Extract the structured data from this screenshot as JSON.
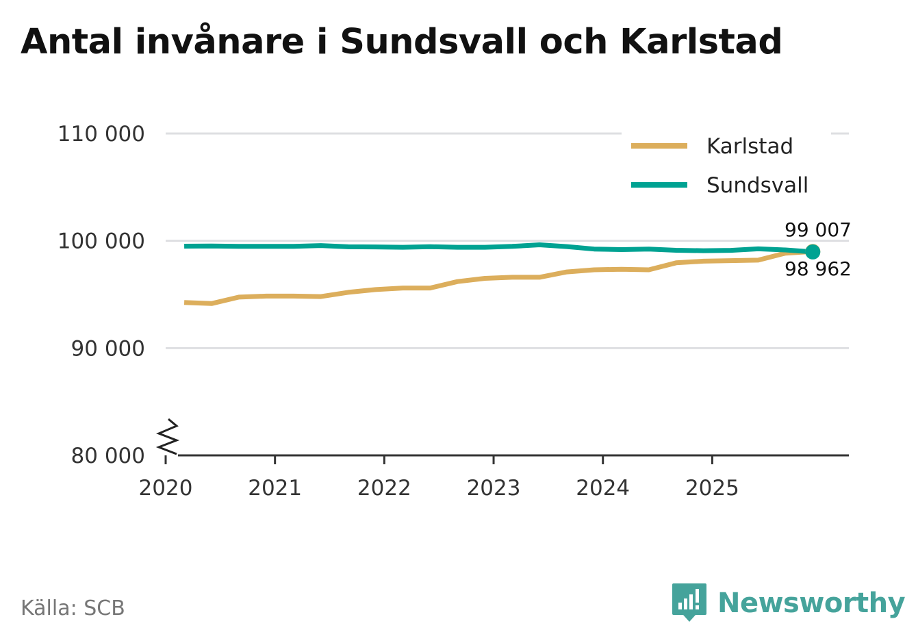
{
  "title": "Antal invånare i Sundsvall och Karlstad",
  "source": "Källa: SCB",
  "brand": {
    "name": "Newsworthy",
    "color": "#45a39b"
  },
  "chart_data": {
    "type": "line",
    "title": "Antal invånare i Sundsvall och Karlstad",
    "xlabel": "",
    "ylabel": "",
    "ylim": [
      80000,
      113000
    ],
    "xlim": [
      2020.0,
      2026.25
    ],
    "y_ticks": [
      80000,
      90000,
      100000,
      110000
    ],
    "y_tick_labels": [
      "80 000",
      "90 000",
      "100 000",
      "110 000"
    ],
    "x_ticks": [
      2020,
      2021,
      2022,
      2023,
      2024,
      2025
    ],
    "x_tick_labels": [
      "2020",
      "2021",
      "2022",
      "2023",
      "2024",
      "2025"
    ],
    "axis_break": true,
    "grid": true,
    "legend_position": "top-right",
    "x": [
      2020.17,
      2020.42,
      2020.67,
      2020.92,
      2021.17,
      2021.42,
      2021.67,
      2021.92,
      2022.17,
      2022.42,
      2022.67,
      2022.92,
      2023.17,
      2023.42,
      2023.67,
      2023.92,
      2024.17,
      2024.42,
      2024.67,
      2024.92,
      2025.17,
      2025.42,
      2025.67,
      2025.92
    ],
    "series": [
      {
        "name": "Karlstad",
        "color": "#dcae5c",
        "values": [
          94250,
          94150,
          94750,
          94850,
          94850,
          94800,
          95200,
          95450,
          95600,
          95600,
          96200,
          96500,
          96600,
          96600,
          97100,
          97300,
          97350,
          97300,
          97950,
          98100,
          98150,
          98200,
          98850,
          99007
        ],
        "end_label": "99 007"
      },
      {
        "name": "Sundsvall",
        "color": "#00a292",
        "values": [
          99500,
          99520,
          99480,
          99480,
          99480,
          99560,
          99440,
          99430,
          99400,
          99450,
          99400,
          99400,
          99480,
          99630,
          99460,
          99230,
          99180,
          99230,
          99120,
          99080,
          99110,
          99250,
          99150,
          98962
        ],
        "end_label": "98 962"
      }
    ]
  }
}
